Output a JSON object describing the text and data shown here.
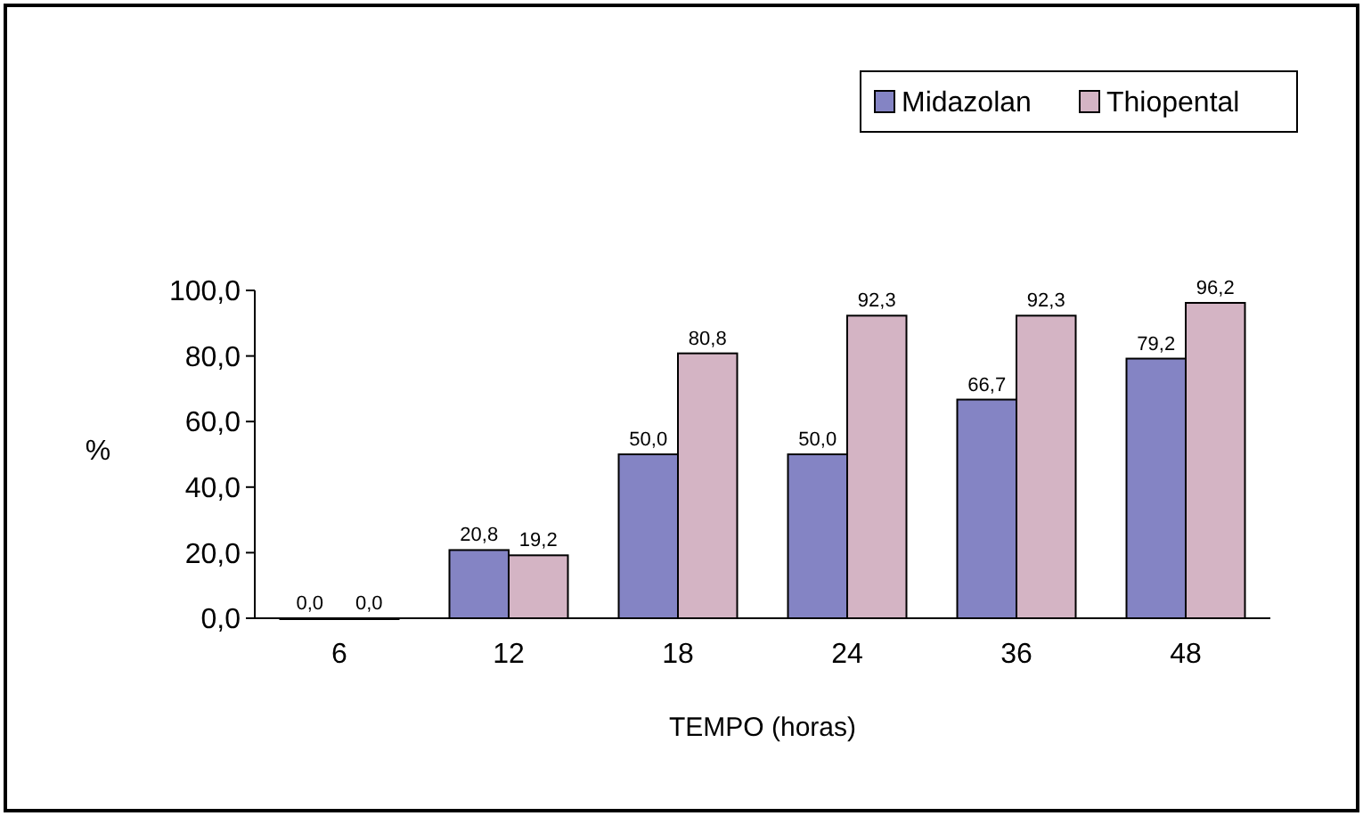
{
  "chart_data": {
    "type": "bar",
    "xlabel": "TEMPO (horas)",
    "ylabel": "%",
    "categories": [
      "6",
      "12",
      "18",
      "24",
      "36",
      "48"
    ],
    "series": [
      {
        "name": "Midazolan",
        "color": "#8484c4",
        "values": [
          0,
          20.8,
          50,
          50,
          66.7,
          79.2
        ],
        "value_labels": [
          "0,0",
          "20,8",
          "50,0",
          "50,0",
          "66,7",
          "79,2"
        ]
      },
      {
        "name": "Thiopental",
        "color": "#d4b4c4",
        "values": [
          0,
          19.2,
          80.8,
          92.3,
          92.3,
          96.2
        ],
        "value_labels": [
          "0,0",
          "19,2",
          "80,8",
          "92,3",
          "92,3",
          "96,2"
        ]
      }
    ],
    "ylim": [
      0,
      100
    ],
    "yticks": [
      {
        "value": 0,
        "label": "0,0"
      },
      {
        "value": 20,
        "label": "20,0"
      },
      {
        "value": 40,
        "label": "40,0"
      },
      {
        "value": 60,
        "label": "60,0"
      },
      {
        "value": 80,
        "label": "80,0"
      },
      {
        "value": 100,
        "label": "100,0"
      }
    ],
    "grid": false,
    "legend": "top right"
  }
}
